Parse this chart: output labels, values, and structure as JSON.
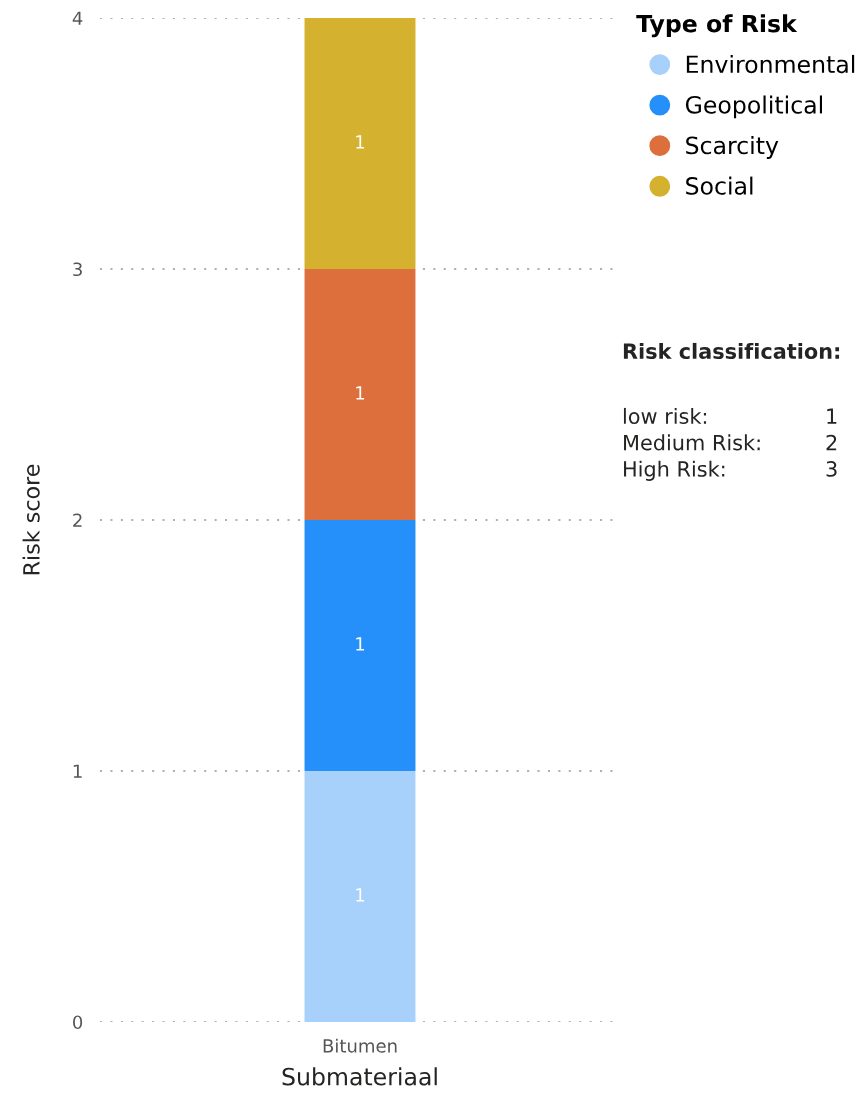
{
  "chart_data": {
    "type": "bar",
    "stacked": true,
    "xlabel": "Submateriaal",
    "ylabel": "Risk score",
    "legend_title": "Type of Risk",
    "categories": [
      "Bitumen"
    ],
    "series": [
      {
        "name": "Environmental",
        "color": "#a7d0fb",
        "values": [
          1
        ]
      },
      {
        "name": "Geopolitical",
        "color": "#258ffa",
        "values": [
          1
        ]
      },
      {
        "name": "Scarcity",
        "color": "#dd6f3d",
        "values": [
          1
        ]
      },
      {
        "name": "Social",
        "color": "#d4b12f",
        "values": [
          1
        ]
      }
    ],
    "ylim": [
      0,
      4
    ],
    "yticks": [
      0,
      1,
      2,
      3,
      4
    ],
    "grid": "y",
    "legend": "top right",
    "data_labels": true,
    "annotations": [
      "Risk classification:",
      "low risk:",
      "1",
      "Medium Risk:",
      "2",
      "High Risk:",
      "3"
    ]
  }
}
